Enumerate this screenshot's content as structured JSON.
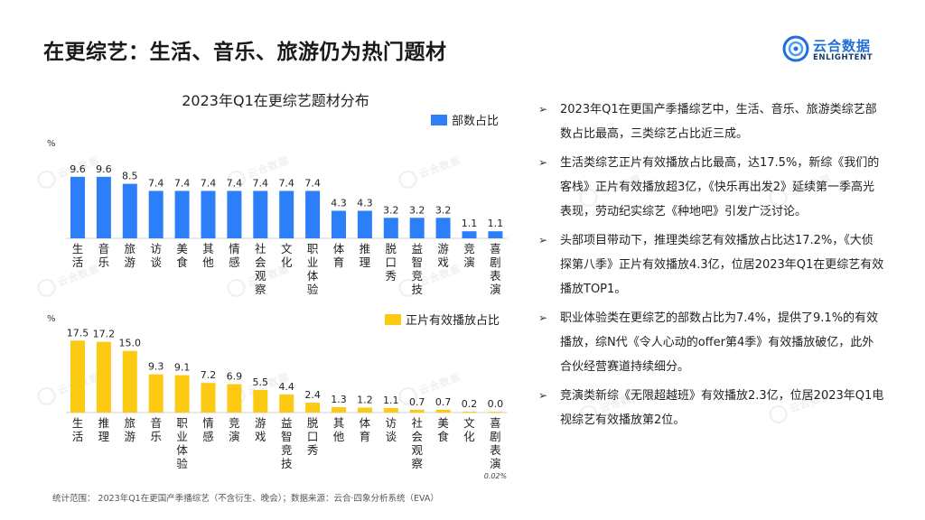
{
  "page_title": "在更综艺：生活、音乐、旅游仍为热门题材",
  "logo": {
    "cn": "云合数据",
    "en": "ENLIGHTENT"
  },
  "chart_title": "2023年Q1在更综艺题材分布",
  "chart_data": [
    {
      "type": "bar",
      "series": [
        {
          "name": "部数占比",
          "color": "#2d7ff9",
          "values": [
            9.6,
            9.6,
            8.5,
            7.4,
            7.4,
            7.4,
            7.4,
            7.4,
            7.4,
            7.4,
            4.3,
            4.3,
            3.2,
            3.2,
            3.2,
            1.1,
            1.1
          ]
        }
      ],
      "categories": [
        "生活",
        "音乐",
        "旅游",
        "访谈",
        "美食",
        "其他",
        "情感",
        "社会观察",
        "文化",
        "职业体验",
        "体育",
        "推理",
        "脱口秀",
        "益智竞技",
        "游戏",
        "竞演",
        "喜剧表演"
      ],
      "value_labels": [
        "9.6",
        "9.6",
        "8.5",
        "7.4",
        "7.4",
        "7.4",
        "7.4",
        "7.4",
        "7.4",
        "7.4",
        "4.3",
        "4.3",
        "3.2",
        "3.2",
        "3.2",
        "1.1",
        "1.1"
      ],
      "unit": "%",
      "legend": "top-right",
      "ylim": [
        0,
        10
      ]
    },
    {
      "type": "bar",
      "series": [
        {
          "name": "正片有效播放占比",
          "color": "#fcca12",
          "values": [
            17.5,
            17.2,
            15.0,
            9.3,
            9.1,
            7.2,
            6.9,
            5.5,
            4.4,
            2.4,
            1.3,
            1.2,
            1.1,
            0.7,
            0.7,
            0.2,
            0.02
          ]
        }
      ],
      "categories": [
        "生活",
        "推理",
        "旅游",
        "音乐",
        "职业体验",
        "情感",
        "竞演",
        "游戏",
        "益智竞技",
        "脱口秀",
        "其他",
        "体育",
        "访谈",
        "社会观察",
        "美食",
        "文化",
        "喜剧表演"
      ],
      "value_labels": [
        "17.5",
        "17.2",
        "15.0",
        "9.3",
        "9.1",
        "7.2",
        "6.9",
        "5.5",
        "4.4",
        "2.4",
        "1.3",
        "1.2",
        "1.1",
        "0.7",
        "0.7",
        "0.2",
        "0.0"
      ],
      "annotation": "0.02%",
      "unit": "%",
      "legend": "top-right",
      "ylim": [
        0,
        18
      ]
    }
  ],
  "bullets": [
    "2023年Q1在更国产季播综艺中，生活、音乐、旅游类综艺部数占比最高，三类综艺占比近三成。",
    "生活类综艺正片有效播放占比最高，达17.5%，新综《我们的客栈》正片有效播放超3亿，《快乐再出发2》延续第一季高光表现，劳动纪实综艺《种地吧》引发广泛讨论。",
    "头部项目带动下，推理类综艺有效播放占比达17.2%，《大侦探第八季》正片有效播放4.3亿，位居2023年Q1在更综艺有效播放TOP1。",
    "职业体验类在更综艺的部数占比为7.4%，提供了9.1%的有效播放，综N代《令人心动的offer第4季》有效播放破亿，此外合伙经营赛道持续细分。",
    "竞演类新综《无限超越班》有效播放2.3亿，位居2023年Q1电视综艺有效播放第2位。"
  ],
  "bullet_icon": "arrow-right-icon",
  "footer": "统计范围：  2023年Q1在更国产季播综艺（不含衍生、晚会）；数据来源：云合·四象分析系统（EVA）",
  "watermark": "云合数据"
}
